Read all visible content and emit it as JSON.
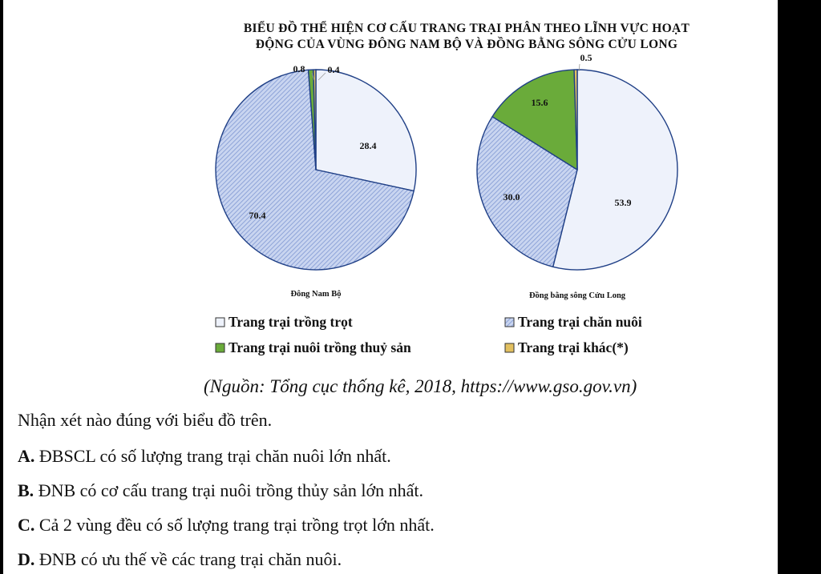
{
  "chart_data": {
    "type": "pie",
    "title_lines": [
      "BIỂU ĐỒ THỂ HIỆN CƠ CẤU TRANG TRẠI PHÂN THEO LĨNH VỰC HOẠT",
      "ĐỘNG CỦA VÙNG ĐÔNG NAM BỘ VÀ ĐỒNG BẰNG SÔNG CỬU LONG"
    ],
    "categories": [
      "Trang trại trồng trọt",
      "Trang trại chăn nuôi",
      "Trang trại nuôi trồng thuỷ sản",
      "Trang trại khác(*)"
    ],
    "colors": {
      "trong_trot": "#eef2fb",
      "chan_nuoi": "#b7c6ea",
      "thuy_san": "#6aab3a",
      "khac": "#e2c060",
      "stroke": "#1f3f86"
    },
    "pies": [
      {
        "name": "Đông Nam Bộ",
        "values": [
          28.4,
          70.4,
          0.8,
          0.4
        ],
        "labels": [
          "28.4",
          "70.4",
          "0.8",
          "0.4"
        ]
      },
      {
        "name": "Đồng bằng sông Cửu Long",
        "values": [
          53.9,
          30.0,
          15.6,
          0.5
        ],
        "labels": [
          "53.9",
          "30.0",
          "15.6",
          "0.5"
        ]
      }
    ],
    "legend": [
      {
        "label": "Trang trại trồng trọt",
        "marker": "trong_trot"
      },
      {
        "label": "Trang trại chăn nuôi",
        "marker": "chan_nuoi"
      },
      {
        "label": "Trang trại nuôi trồng thuỷ sản",
        "marker": "thuy_san"
      },
      {
        "label": "Trang trại khác(*)",
        "marker": "khac"
      }
    ]
  },
  "source": "(Nguồn: Tổng cục thống kê, 2018, https://www.gso.gov.vn)",
  "question": "Nhận xét nào đúng với biểu đồ trên.",
  "options": [
    {
      "letter": "A.",
      "text": " ĐBSCL có số lượng trang trại chăn nuôi lớn nhất."
    },
    {
      "letter": "B.",
      "text": " ĐNB có cơ cấu trang trại nuôi trồng thủy sản lớn nhất."
    },
    {
      "letter": "C.",
      "text": " Cả 2 vùng đều có số lượng trang trại trồng trọt lớn nhất."
    },
    {
      "letter": "D.",
      "text": " ĐNB có ưu thế về các trang trại chăn nuôi."
    }
  ]
}
